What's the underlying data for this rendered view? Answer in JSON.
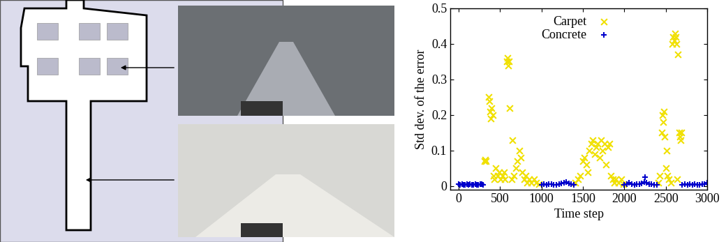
{
  "chart_data": {
    "type": "scatter",
    "x_label": "Time step",
    "y_label": "Std dev. of the error",
    "xlim": [
      -100,
      3000
    ],
    "ylim": [
      -0.01,
      0.5
    ],
    "xticks": [
      0,
      500,
      1000,
      1500,
      2000,
      2500,
      3000
    ],
    "yticks": [
      0,
      0.1,
      0.2,
      0.3,
      0.4,
      0.5
    ],
    "legend": "upper center",
    "series": [
      {
        "name": "Carpet",
        "color": "#f0e000",
        "marker": "x",
        "x": [
          310,
          320,
          330,
          360,
          370,
          380,
          390,
          400,
          410,
          420,
          430,
          450,
          470,
          490,
          510,
          530,
          550,
          560,
          580,
          590,
          600,
          610,
          620,
          640,
          650,
          670,
          690,
          710,
          730,
          750,
          770,
          790,
          810,
          830,
          850,
          880,
          910,
          940,
          970,
          1410,
          1440,
          1470,
          1500,
          1520,
          1540,
          1560,
          1580,
          1600,
          1620,
          1640,
          1660,
          1680,
          1700,
          1720,
          1740,
          1760,
          1780,
          1800,
          1820,
          1840,
          1860,
          1880,
          1900,
          1930,
          1960,
          1990,
          2410,
          2430,
          2450,
          2460,
          2470,
          2480,
          2490,
          2500,
          2510,
          2520,
          2540,
          2560,
          2580,
          2590,
          2600,
          2610,
          2620,
          2630,
          2640,
          2650,
          2660,
          2670,
          2680,
          2690
        ],
        "values": [
          0.07,
          0.075,
          0.07,
          0.25,
          0.24,
          0.21,
          0.19,
          0.22,
          0.2,
          0.03,
          0.02,
          0.05,
          0.03,
          0.04,
          0.02,
          0.03,
          0.04,
          0.02,
          0.35,
          0.36,
          0.34,
          0.35,
          0.22,
          0.02,
          0.13,
          0.03,
          0.05,
          0.07,
          0.1,
          0.08,
          0.04,
          0.02,
          0.03,
          0.01,
          0.02,
          0.01,
          0.02,
          0.01,
          0.005,
          0.01,
          0.02,
          0.03,
          0.07,
          0.08,
          0.06,
          0.04,
          0.1,
          0.12,
          0.13,
          0.09,
          0.11,
          0.12,
          0.08,
          0.13,
          0.1,
          0.12,
          0.06,
          0.11,
          0.12,
          0.03,
          0.02,
          0.01,
          0.02,
          0.01,
          0.02,
          0.005,
          0.01,
          0.03,
          0.15,
          0.2,
          0.18,
          0.21,
          0.14,
          0.05,
          0.1,
          0.03,
          0.02,
          0.01,
          0.4,
          0.42,
          0.41,
          0.43,
          0.42,
          0.4,
          0.02,
          0.37,
          0.15,
          0.14,
          0.13,
          0.15
        ]
      },
      {
        "name": "Concrete",
        "color": "#0000cc",
        "marker": "+",
        "x": [
          0,
          20,
          40,
          60,
          80,
          100,
          120,
          140,
          160,
          180,
          200,
          220,
          240,
          260,
          280,
          300,
          1000,
          1030,
          1060,
          1090,
          1120,
          1150,
          1180,
          1210,
          1240,
          1270,
          1300,
          1330,
          1360,
          1390,
          2000,
          2030,
          2060,
          2090,
          2120,
          2150,
          2180,
          2210,
          2240,
          2250,
          2270,
          2300,
          2330,
          2360,
          2390,
          2700,
          2730,
          2760,
          2790,
          2820,
          2850,
          2880,
          2910,
          2940,
          2970,
          3000
        ],
        "values": [
          0.005,
          0.003,
          0.006,
          0.004,
          0.003,
          0.005,
          0.004,
          0.006,
          0.003,
          0.004,
          0.005,
          0.003,
          0.004,
          0.006,
          0.005,
          0.004,
          0.003,
          0.005,
          0.004,
          0.006,
          0.005,
          0.004,
          0.003,
          0.005,
          0.008,
          0.01,
          0.012,
          0.008,
          0.005,
          0.004,
          0.004,
          0.006,
          0.01,
          0.005,
          0.004,
          0.006,
          0.005,
          0.008,
          0.012,
          0.025,
          0.01,
          0.006,
          0.005,
          0.004,
          0.003,
          0.004,
          0.005,
          0.003,
          0.006,
          0.004,
          0.005,
          0.003,
          0.004,
          0.006,
          0.005,
          0.01
        ]
      }
    ]
  }
}
